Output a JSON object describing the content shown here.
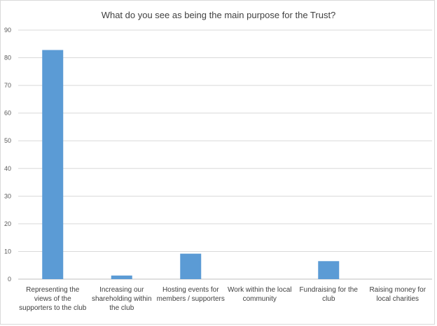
{
  "chart_data": {
    "type": "bar",
    "title": "What do you see as being the main purpose for the Trust?",
    "categories": [
      "Representing the views of the supporters to the club",
      "Increasing our shareholding within the club",
      "Hosting events for members / supporters",
      "Work within the local community",
      "Fundraising for the club",
      "Raising money for local charities"
    ],
    "values": [
      82.8,
      1.3,
      9.2,
      0,
      6.5,
      0
    ],
    "ylim": [
      0,
      90
    ],
    "yticks": [
      0,
      10,
      20,
      30,
      40,
      50,
      60,
      70,
      80,
      90
    ],
    "grid": true,
    "legend": "none",
    "bar_color": "#5b9bd5"
  }
}
